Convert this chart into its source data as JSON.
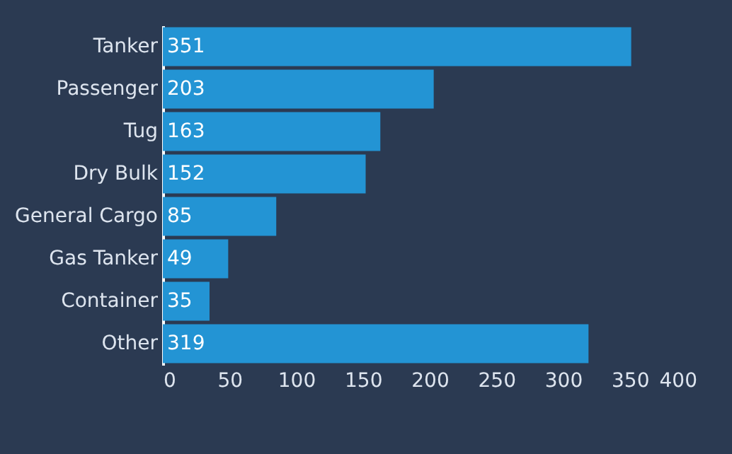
{
  "chart_data": {
    "type": "bar",
    "orientation": "horizontal",
    "categories": [
      "Tanker",
      "Passenger",
      "Tug",
      "Dry Bulk",
      "General Cargo",
      "Gas Tanker",
      "Container",
      "Other"
    ],
    "values": [
      351,
      203,
      163,
      152,
      85,
      49,
      35,
      319
    ],
    "color": "#2394d4",
    "xlim": [
      0,
      400
    ],
    "xticks": [
      0,
      50,
      100,
      150,
      200,
      250,
      300,
      350,
      400
    ],
    "data_labels": true,
    "grid": false
  }
}
